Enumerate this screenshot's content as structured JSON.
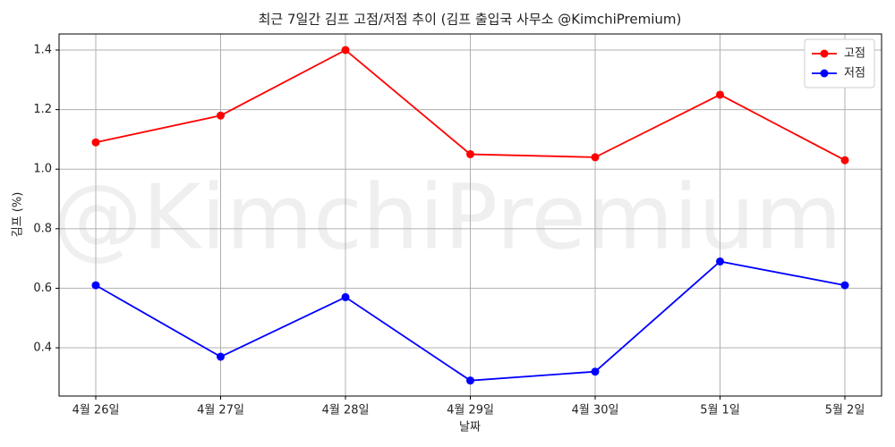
{
  "chart_data": {
    "type": "line",
    "title": "최근 7일간 김프 고점/저점 추이 (김프 출입국 사무소 @KimchiPremium)",
    "watermark": "@KimchiPremium",
    "x_label": "날짜",
    "y_label": "김프 (%)",
    "categories": [
      "4월 26일",
      "4월 27일",
      "4월 28일",
      "4월 29일",
      "4월 30일",
      "5월 1일",
      "5월 2일"
    ],
    "series": [
      {
        "name": "고점",
        "color": "#ff0000",
        "values": [
          1.09,
          1.18,
          1.4,
          1.05,
          1.04,
          1.25,
          1.03
        ]
      },
      {
        "name": "저점",
        "color": "#0000ff",
        "values": [
          0.61,
          0.37,
          0.57,
          0.29,
          0.32,
          0.69,
          0.61
        ]
      }
    ],
    "ylim": [
      0.238,
      1.454
    ],
    "yticks": [
      {
        "value": 0.4,
        "label": "0.4"
      },
      {
        "value": 0.6,
        "label": "0.6"
      },
      {
        "value": 0.8,
        "label": "0.8"
      },
      {
        "value": 1.0,
        "label": "1.0"
      },
      {
        "value": 1.2,
        "label": "1.2"
      },
      {
        "value": 1.4,
        "label": "1.4"
      }
    ],
    "grid": true,
    "legend": "upper right"
  }
}
